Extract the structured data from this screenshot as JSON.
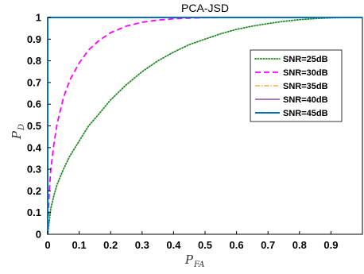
{
  "chart_data": {
    "type": "line",
    "title": "PCA-JSD",
    "xlabel": {
      "main": "P",
      "sub": "FA"
    },
    "ylabel": {
      "main": "P",
      "sub": "D"
    },
    "xlim": [
      0,
      1
    ],
    "ylim": [
      0,
      1
    ],
    "xticks": [
      "0",
      "0.1",
      "0.2",
      "0.3",
      "0.4",
      "0.5",
      "0.6",
      "0.7",
      "0.8",
      "0.9"
    ],
    "yticks": [
      "0",
      "0.1",
      "0.2",
      "0.3",
      "0.4",
      "0.5",
      "0.6",
      "0.7",
      "0.8",
      "0.9",
      "1"
    ],
    "legend_position": "upper-right",
    "series": [
      {
        "name": "SNR=25dB",
        "color": "#228B22",
        "dash": "dotted",
        "x": [
          0,
          0.01,
          0.02,
          0.03,
          0.05,
          0.07,
          0.1,
          0.13,
          0.16,
          0.2,
          0.25,
          0.3,
          0.35,
          0.4,
          0.45,
          0.5,
          0.55,
          0.6,
          0.65,
          0.7,
          0.75,
          0.8,
          0.85,
          0.9,
          0.95,
          1.0
        ],
        "y": [
          0,
          0.12,
          0.18,
          0.23,
          0.3,
          0.36,
          0.43,
          0.5,
          0.55,
          0.62,
          0.69,
          0.75,
          0.8,
          0.84,
          0.875,
          0.9,
          0.925,
          0.945,
          0.96,
          0.972,
          0.982,
          0.99,
          0.995,
          0.998,
          1.0,
          1.0
        ]
      },
      {
        "name": "SNR=30dB",
        "color": "#FF00FF",
        "dash": "dashed",
        "x": [
          0,
          0.005,
          0.01,
          0.02,
          0.03,
          0.05,
          0.07,
          0.1,
          0.13,
          0.16,
          0.2,
          0.25,
          0.3,
          0.35,
          0.4,
          0.45,
          0.5,
          0.6,
          0.7,
          0.8,
          0.9,
          1.0
        ],
        "y": [
          0,
          0.2,
          0.3,
          0.42,
          0.51,
          0.63,
          0.71,
          0.79,
          0.85,
          0.89,
          0.93,
          0.96,
          0.978,
          0.988,
          0.994,
          0.997,
          0.999,
          1.0,
          1.0,
          1.0,
          1.0,
          1.0
        ]
      },
      {
        "name": "SNR=35dB",
        "color": "#E6A817",
        "dash": "dashdot",
        "x": [
          0,
          0,
          1
        ],
        "y": [
          0,
          1,
          1
        ]
      },
      {
        "name": "SNR=40dB",
        "color": "#7E2F8E",
        "dash": "solid",
        "x": [
          0,
          0,
          1
        ],
        "y": [
          0,
          1,
          1
        ]
      },
      {
        "name": "SNR=45dB",
        "color": "#0072BD",
        "dash": "solid-thick",
        "x": [
          0,
          0,
          1
        ],
        "y": [
          0,
          1,
          1
        ]
      }
    ]
  }
}
